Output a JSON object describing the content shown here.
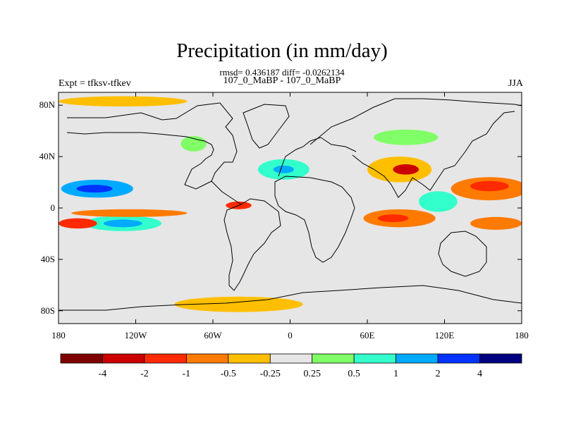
{
  "plot": {
    "title": "Precipitation (in mm/day)",
    "stats_line": "rmsd= 0.436187 diff= -0.0262134",
    "comparison": "107_0_MaBP - 107_0_MaBP",
    "experiment": "Expt = tfksv-tfkev",
    "season": "JJA",
    "background_color": "#e6e6e6",
    "land_outline_color": "#000000"
  },
  "axes": {
    "lon_range": [
      -180,
      180
    ],
    "lat_range": [
      -90,
      90
    ],
    "lon_ticks": [
      {
        "value": -180,
        "label": "180"
      },
      {
        "value": -120,
        "label": "120W"
      },
      {
        "value": -60,
        "label": "60W"
      },
      {
        "value": 0,
        "label": "0"
      },
      {
        "value": 60,
        "label": "60E"
      },
      {
        "value": 120,
        "label": "120E"
      },
      {
        "value": 180,
        "label": "180"
      }
    ],
    "lat_ticks": [
      {
        "value": 80,
        "label": "80N"
      },
      {
        "value": 40,
        "label": "40N"
      },
      {
        "value": 0,
        "label": "0"
      },
      {
        "value": -40,
        "label": "40S"
      },
      {
        "value": -80,
        "label": "80S"
      }
    ]
  },
  "colorbar": {
    "boundaries": [
      "-4",
      "-2",
      "-1",
      "-0.5",
      "-0.25",
      "0.25",
      "0.5",
      "1",
      "2",
      "4"
    ],
    "colors": [
      "#7f0000",
      "#cc0000",
      "#ff2a00",
      "#ff7a00",
      "#ffbf00",
      "#e6e6e6",
      "#80ff66",
      "#33ffcc",
      "#00aaff",
      "#0033ff",
      "#000080"
    ]
  },
  "features": [
    {
      "name": "tropical-pacific-north-negative",
      "level": 8,
      "lon": -150,
      "lat": 15,
      "rx": 28,
      "ry": 7
    },
    {
      "name": "tropical-pacific-north-negative-core",
      "level": 9,
      "lon": -152,
      "lat": 15,
      "rx": 14,
      "ry": 3
    },
    {
      "name": "tropical-pacific-south-negative",
      "level": 7,
      "lon": -130,
      "lat": -12,
      "rx": 30,
      "ry": 6
    },
    {
      "name": "tropical-pacific-south-negative-core",
      "level": 8,
      "lon": -130,
      "lat": -12,
      "rx": 15,
      "ry": 3
    },
    {
      "name": "pacific-equatorial-positive",
      "level": 3,
      "lon": -125,
      "lat": -4,
      "rx": 45,
      "ry": 3
    },
    {
      "name": "pacific-offequator-positive",
      "level": 2,
      "lon": -165,
      "lat": -12,
      "rx": 15,
      "ry": 4
    },
    {
      "name": "atlantic-north-negative",
      "level": 7,
      "lon": -5,
      "lat": 30,
      "rx": 20,
      "ry": 8
    },
    {
      "name": "atlantic-north-negative-core",
      "level": 8,
      "lon": -5,
      "lat": 30,
      "rx": 8,
      "ry": 3
    },
    {
      "name": "atlantic-itcz-positive",
      "level": 2,
      "lon": -40,
      "lat": 2,
      "rx": 10,
      "ry": 3
    },
    {
      "name": "india-monsoon-positive",
      "level": 4,
      "lon": 85,
      "lat": 30,
      "rx": 25,
      "ry": 10
    },
    {
      "name": "india-monsoon-positive-core",
      "level": 1,
      "lon": 90,
      "lat": 30,
      "rx": 10,
      "ry": 4
    },
    {
      "name": "indian-ocean-positive",
      "level": 3,
      "lon": 85,
      "lat": -8,
      "rx": 28,
      "ry": 7
    },
    {
      "name": "indian-ocean-positive-core",
      "level": 2,
      "lon": 80,
      "lat": -8,
      "rx": 12,
      "ry": 3
    },
    {
      "name": "west-pacific-positive",
      "level": 3,
      "lon": 155,
      "lat": 15,
      "rx": 30,
      "ry": 9
    },
    {
      "name": "west-pacific-positive-core",
      "level": 2,
      "lon": 155,
      "lat": 17,
      "rx": 15,
      "ry": 4
    },
    {
      "name": "maritime-negative",
      "level": 7,
      "lon": 115,
      "lat": 5,
      "rx": 15,
      "ry": 8
    },
    {
      "name": "south-pacific-positive",
      "level": 3,
      "lon": 160,
      "lat": -12,
      "rx": 20,
      "ry": 5
    },
    {
      "name": "southern-ocean-positive",
      "level": 4,
      "lon": -40,
      "lat": -75,
      "rx": 50,
      "ry": 6
    },
    {
      "name": "arctic-positive",
      "level": 4,
      "lon": -130,
      "lat": 83,
      "rx": 50,
      "ry": 4
    },
    {
      "name": "siberia-negative",
      "level": 6,
      "lon": 90,
      "lat": 55,
      "rx": 25,
      "ry": 6
    },
    {
      "name": "north-america-negative",
      "level": 6,
      "lon": -75,
      "lat": 50,
      "rx": 10,
      "ry": 6
    }
  ]
}
